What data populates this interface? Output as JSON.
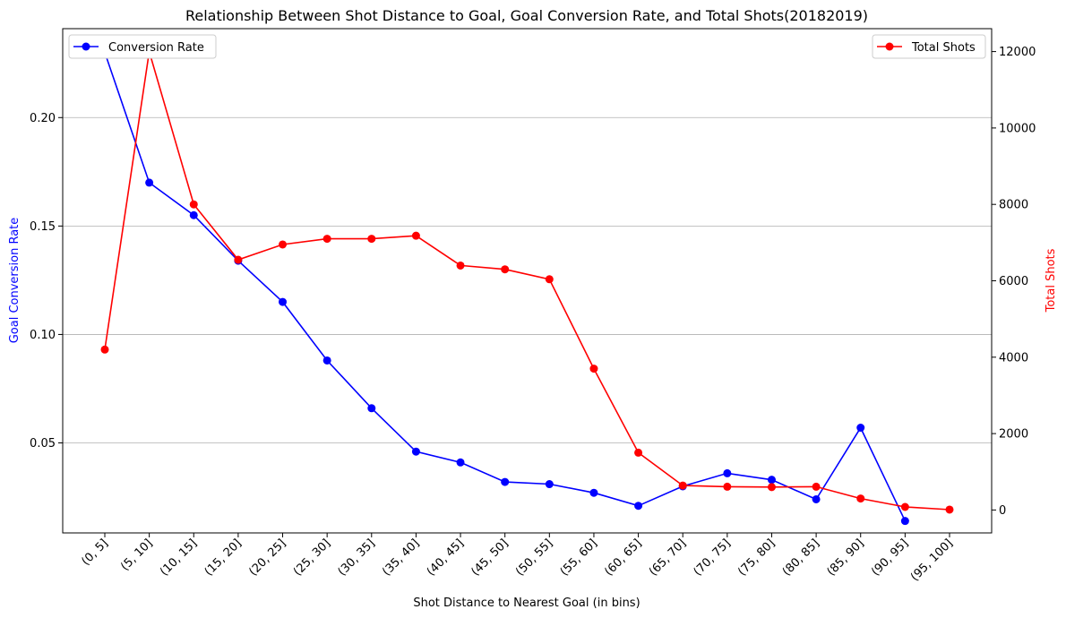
{
  "chart_data": {
    "type": "line",
    "title": "Relationship Between Shot Distance to Goal, Goal Conversion Rate, and Total Shots(20182019)",
    "xlabel": "Shot Distance to Nearest Goal (in bins)",
    "ylabel_left": "Goal Conversion Rate",
    "ylabel_right": "Total Shots",
    "categories": [
      "(0, 5]",
      "(5, 10]",
      "(10, 15]",
      "(15, 20]",
      "(20, 25]",
      "(25, 30]",
      "(30, 35]",
      "(35, 40]",
      "(40, 45]",
      "(45, 50]",
      "(50, 55]",
      "(55, 60]",
      "(60, 65]",
      "(65, 70]",
      "(70, 75]",
      "(75, 80]",
      "(80, 85]",
      "(85, 90]",
      "(90, 95]",
      "(95, 100]"
    ],
    "ylim_left": [
      0.0085,
      0.241
    ],
    "ylim_right": [
      -600,
      12600
    ],
    "yticks_left": [
      0.05,
      0.1,
      0.15,
      0.2
    ],
    "ytick_labels_left": [
      "0.05",
      "0.10",
      "0.15",
      "0.20"
    ],
    "yticks_right": [
      0,
      2000,
      4000,
      6000,
      8000,
      10000,
      12000
    ],
    "ytick_labels_right": [
      "0",
      "2000",
      "4000",
      "6000",
      "8000",
      "10000",
      "12000"
    ],
    "grid": "horizontal (left axis)",
    "series": [
      {
        "name": "Conversion Rate",
        "axis": "left",
        "color": "#0000ff",
        "legend": "top-left",
        "values": [
          0.23,
          0.17,
          0.155,
          0.134,
          0.115,
          0.088,
          0.066,
          0.046,
          0.041,
          0.032,
          0.031,
          0.027,
          0.021,
          0.03,
          0.036,
          0.033,
          0.024,
          0.057,
          0.014,
          null
        ]
      },
      {
        "name": "Total Shots",
        "axis": "right",
        "color": "#ff0000",
        "legend": "top-right",
        "values": [
          4200,
          12000,
          8000,
          6550,
          6950,
          7100,
          7100,
          7180,
          6400,
          6300,
          6040,
          3700,
          1500,
          640,
          610,
          600,
          610,
          300,
          80,
          10
        ]
      }
    ]
  }
}
